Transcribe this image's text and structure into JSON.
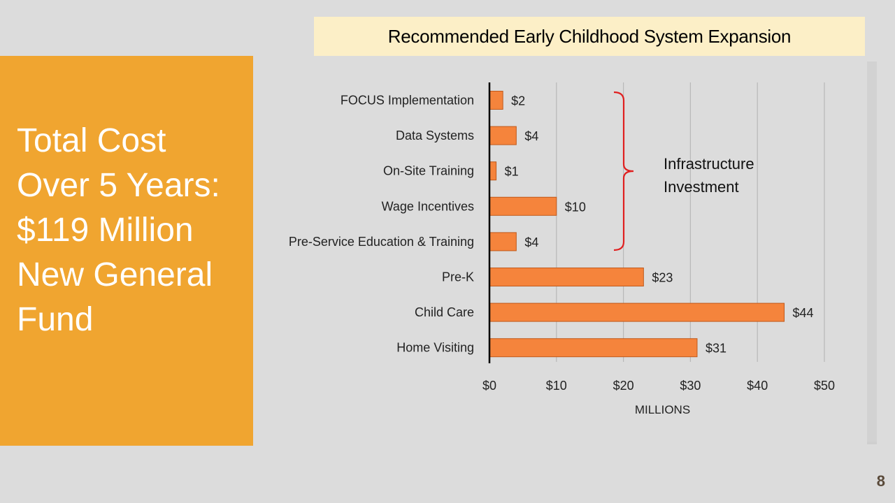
{
  "slide": {
    "headline_lines": [
      "Total Cost",
      "Over 5 Years:",
      "$119 Million",
      "New General",
      "Fund"
    ],
    "page_number": "8",
    "panel_color": "#f0a530",
    "title_bg_color": "#fcefc7"
  },
  "chart_data": {
    "type": "bar",
    "orientation": "horizontal",
    "title": "Recommended Early Childhood System Expansion",
    "xlabel": "MILLIONS",
    "ylabel": "",
    "categories": [
      "FOCUS Implementation",
      "Data Systems",
      "On-Site Training",
      "Wage Incentives",
      "Pre-Service Education & Training",
      "Pre-K",
      "Child Care",
      "Home Visiting"
    ],
    "values": [
      2,
      4,
      1,
      10,
      4,
      23,
      44,
      31
    ],
    "data_labels": [
      "$2",
      "$4",
      "$1",
      "$10",
      "$4",
      "$23",
      "$44",
      "$31"
    ],
    "xlim": [
      0,
      50
    ],
    "xticks": [
      0,
      10,
      20,
      30,
      40,
      50
    ],
    "xtick_labels": [
      "$0",
      "$10",
      "$20",
      "$30",
      "$40",
      "$50"
    ],
    "grid": "vertical",
    "bar_color": "#f5843c",
    "annotation": {
      "text_lines": [
        "Infrastructure",
        "Investment"
      ],
      "spans_categories": [
        "FOCUS Implementation",
        "Data Systems",
        "On-Site Training",
        "Wage Incentives",
        "Pre-Service Education & Training"
      ],
      "color": "#e02020"
    }
  }
}
